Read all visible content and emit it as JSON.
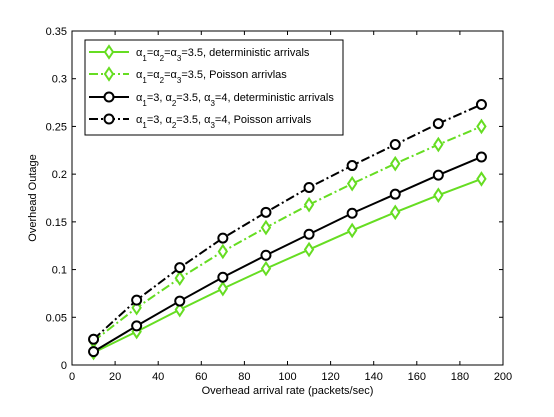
{
  "chart_data": {
    "type": "line",
    "title": "",
    "xlabel": "Overhead arrival rate (packets/sec)",
    "ylabel": "Overhead Outage",
    "xlim": [
      0,
      200
    ],
    "ylim": [
      0,
      0.35
    ],
    "xticks": [
      0,
      20,
      40,
      60,
      80,
      100,
      120,
      140,
      160,
      180,
      200
    ],
    "yticks": [
      0,
      0.05,
      0.1,
      0.15,
      0.2,
      0.25,
      0.3,
      0.35
    ],
    "xtick_labels": [
      "0",
      "20",
      "40",
      "60",
      "80",
      "100",
      "120",
      "140",
      "160",
      "180",
      "200"
    ],
    "ytick_labels": [
      "0",
      "0.05",
      "0.1",
      "0.15",
      "0.2",
      "0.25",
      "0.3",
      "0.35"
    ],
    "grid": false,
    "legend_position": "top-left",
    "x": [
      10,
      30,
      50,
      70,
      90,
      110,
      130,
      150,
      170,
      190
    ],
    "series": [
      {
        "name": "α1=α2=α3=3.5, deterministic arrivals",
        "legend": [
          [
            "α",
            ""
          ],
          [
            "1",
            "sub"
          ],
          [
            "=α",
            ""
          ],
          [
            "2",
            "sub"
          ],
          [
            "=α",
            ""
          ],
          [
            "3",
            "sub"
          ],
          [
            "=3.5, deterministic arrivals",
            ""
          ]
        ],
        "color": "#66dd22",
        "dash": "solid",
        "marker": "diamond",
        "values": [
          0.013,
          0.035,
          0.058,
          0.08,
          0.101,
          0.121,
          0.141,
          0.16,
          0.178,
          0.195
        ]
      },
      {
        "name": "α1=α2=α3=3.5, Poisson arrivlas",
        "legend": [
          [
            "α",
            ""
          ],
          [
            "1",
            "sub"
          ],
          [
            "=α",
            ""
          ],
          [
            "2",
            "sub"
          ],
          [
            "=α",
            ""
          ],
          [
            "3",
            "sub"
          ],
          [
            "=3.5, Poisson arrivlas",
            ""
          ]
        ],
        "color": "#66dd22",
        "dash": "dashdot",
        "marker": "diamond",
        "values": [
          0.025,
          0.06,
          0.091,
          0.119,
          0.144,
          0.168,
          0.19,
          0.211,
          0.231,
          0.25
        ]
      },
      {
        "name": "α1=3, α2=3.5, α3=4, deterministic arrivals",
        "legend": [
          [
            "α",
            ""
          ],
          [
            "1",
            "sub"
          ],
          [
            "=3, α",
            ""
          ],
          [
            "2",
            "sub"
          ],
          [
            "=3.5, α",
            ""
          ],
          [
            "3",
            "sub"
          ],
          [
            "=4, deterministic arrivals",
            ""
          ]
        ],
        "color": "#000000",
        "dash": "solid",
        "marker": "circle",
        "values": [
          0.014,
          0.041,
          0.067,
          0.092,
          0.115,
          0.137,
          0.159,
          0.179,
          0.199,
          0.218
        ]
      },
      {
        "name": "α1=3, α2=3.5, α3=4, Poisson arrivals",
        "legend": [
          [
            "α",
            ""
          ],
          [
            "1",
            "sub"
          ],
          [
            "=3, α",
            ""
          ],
          [
            "2",
            "sub"
          ],
          [
            "=3.5, α",
            ""
          ],
          [
            "3",
            "sub"
          ],
          [
            "=4, Poisson arrivals",
            ""
          ]
        ],
        "color": "#000000",
        "dash": "dashdot",
        "marker": "circle",
        "values": [
          0.027,
          0.068,
          0.102,
          0.133,
          0.16,
          0.186,
          0.209,
          0.231,
          0.253,
          0.273
        ]
      }
    ]
  }
}
